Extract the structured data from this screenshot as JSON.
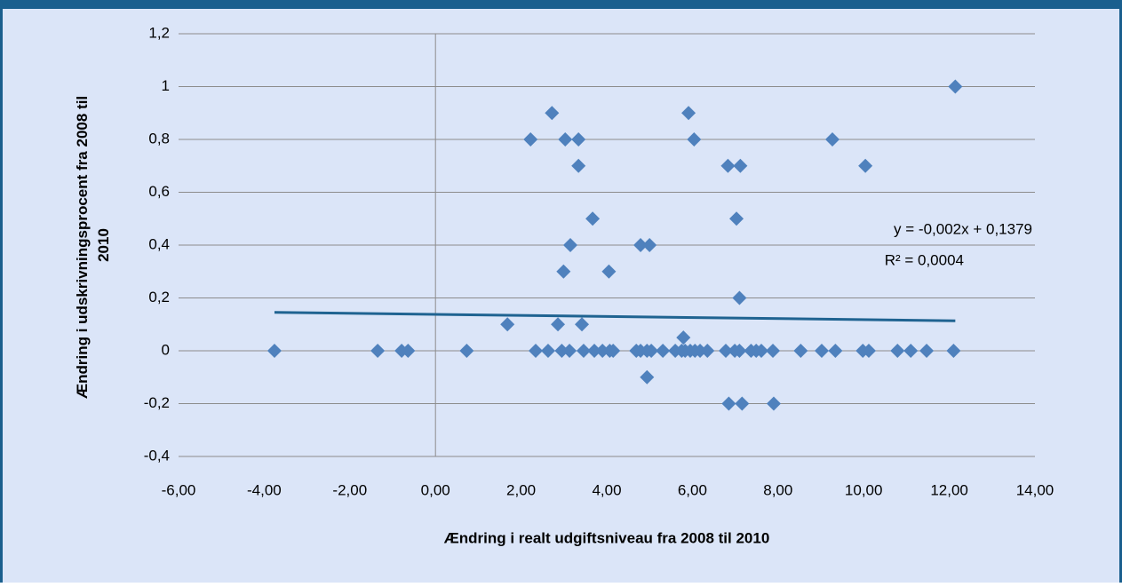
{
  "chart_data": {
    "type": "scatter",
    "x_label": "Ændring i realt udgiftsniveau fra 2008 til 2010",
    "y_label": [
      "Ændring i udskrivningsprocent fra 2008 til",
      "2010"
    ],
    "color": "#4f81bd",
    "x": [
      -3.76,
      -1.35,
      -0.79,
      -0.64,
      0.73,
      2.34,
      2.63,
      2.95,
      3.13,
      3.46,
      3.71,
      3.9,
      4.07,
      4.15,
      4.69,
      4.79,
      4.94,
      5.04,
      5.31,
      5.6,
      5.75,
      5.83,
      5.95,
      6.06,
      6.18,
      6.35,
      6.78,
      6.99,
      7.1,
      7.37,
      7.49,
      7.61,
      7.88,
      8.53,
      9.02,
      9.34,
      9.98,
      10.12,
      10.79,
      11.1,
      11.47,
      12.1,
      1.68,
      2.22,
      2.72,
      2.86,
      2.99,
      3.03,
      3.15,
      3.34,
      3.34,
      3.42,
      3.67,
      4.05,
      4.79,
      5.0,
      4.94,
      5.79,
      5.91,
      6.04,
      6.83,
      7.12,
      7.03,
      7.1,
      6.85,
      7.16,
      7.9,
      9.27,
      10.04,
      12.14
    ],
    "values": [
      0,
      0,
      0,
      0,
      0,
      0,
      0,
      0,
      0,
      0,
      0,
      0,
      0,
      0,
      0,
      0,
      0,
      0,
      0,
      0,
      0,
      0,
      0,
      0,
      0,
      0,
      0,
      0,
      0,
      0,
      0,
      0,
      0,
      0,
      0,
      0,
      0,
      0,
      0,
      0,
      0,
      0,
      0.1,
      0.8,
      0.9,
      0.1,
      0.3,
      0.8,
      0.4,
      0.8,
      0.7,
      0.1,
      0.5,
      0.3,
      0.4,
      0.4,
      -0.1,
      0.05,
      0.9,
      0.8,
      0.7,
      0.7,
      0.5,
      0.2,
      -0.2,
      -0.2,
      -0.2,
      0.8,
      0.7,
      1
    ],
    "xlim": [
      -6,
      14
    ],
    "xticks": [
      {
        "value": -6,
        "label": "-6,00"
      },
      {
        "value": -4,
        "label": "-4,00"
      },
      {
        "value": -2,
        "label": "-2,00"
      },
      {
        "value": 0,
        "label": "0,00"
      },
      {
        "value": 2,
        "label": "2,00"
      },
      {
        "value": 4,
        "label": "4,00"
      },
      {
        "value": 6,
        "label": "6,00"
      },
      {
        "value": 8,
        "label": "8,00"
      },
      {
        "value": 10,
        "label": "10,00"
      },
      {
        "value": 12,
        "label": "12,00"
      },
      {
        "value": 14,
        "label": "14,00"
      }
    ],
    "ylim": [
      -0.4,
      1.2
    ],
    "yticks": [
      {
        "value": -0.4,
        "label": "-0,4"
      },
      {
        "value": -0.2,
        "label": "-0,2"
      },
      0,
      {
        "value": 0.2,
        "label": "0,2"
      },
      {
        "value": 0.4,
        "label": "0,4"
      },
      {
        "value": 0.6,
        "label": "0,6"
      },
      {
        "value": 0.8,
        "label": "0,8"
      },
      1,
      {
        "value": 1.2,
        "label": "1,2"
      }
    ],
    "grid": true,
    "trendline": {
      "label": "y = -0,002x + 0,1379",
      "r2_label": "R² = 0,0004",
      "slope": -0.002,
      "intercept": 0.1379,
      "color": "#1f6391"
    }
  }
}
